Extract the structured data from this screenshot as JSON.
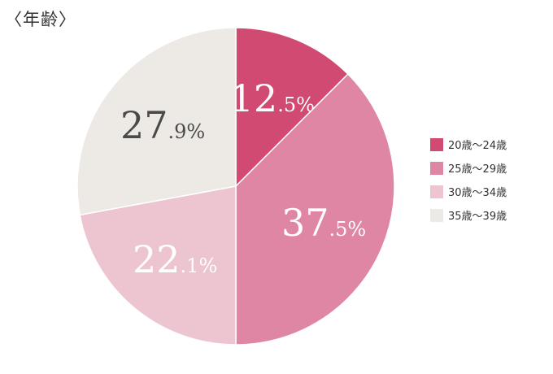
{
  "title": "〈年齢〉",
  "chart_data": {
    "type": "pie",
    "start_angle_deg": 0,
    "direction": "clockwise",
    "slices": [
      {
        "label": "20歳～24歳",
        "value": 12.5,
        "int": "12",
        "dec": ".5%",
        "color": "#d04a72",
        "text_color": "#ffffff"
      },
      {
        "label": "25歳～29歳",
        "value": 37.5,
        "int": "37",
        "dec": ".5%",
        "color": "#df86a5",
        "text_color": "#ffffff"
      },
      {
        "label": "30歳～34歳",
        "value": 22.1,
        "int": "22",
        "dec": ".1%",
        "color": "#ecc5d0",
        "text_color": "#ffffff"
      },
      {
        "label": "35歳～39歳",
        "value": 27.9,
        "int": "27",
        "dec": ".9%",
        "color": "#edeae6",
        "text_color": "#4a4a4a"
      }
    ],
    "legend_position": "right"
  }
}
